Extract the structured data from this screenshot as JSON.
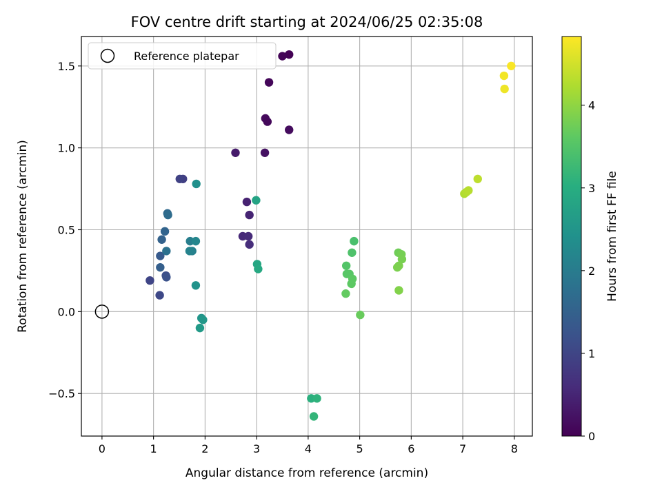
{
  "chart_data": {
    "type": "scatter",
    "title": "FOV centre drift starting at 2024/06/25 02:35:08",
    "xlabel": "Angular distance from reference (arcmin)",
    "ylabel": "Rotation from reference (arcmin)",
    "xlim": [
      -0.4,
      8.35
    ],
    "ylim": [
      -0.76,
      1.68
    ],
    "xticks": [
      0,
      1,
      2,
      3,
      4,
      5,
      6,
      7,
      8
    ],
    "xtick_labels": [
      "0",
      "1",
      "2",
      "3",
      "4",
      "5",
      "6",
      "7",
      "8"
    ],
    "yticks": [
      -0.5,
      0.0,
      0.5,
      1.0,
      1.5
    ],
    "ytick_labels": [
      "−0.5",
      "0.0",
      "0.5",
      "1.0",
      "1.5"
    ],
    "grid": true,
    "legend": {
      "position": "top-left",
      "entries": [
        "Reference platepar"
      ]
    },
    "reference": {
      "x": 0,
      "y": 0,
      "label": "Reference platepar"
    },
    "colorbar": {
      "label": "Hours from first FF file",
      "range": [
        0,
        4.83
      ],
      "ticks": [
        0,
        1,
        2,
        3,
        4
      ],
      "tick_labels": [
        "0",
        "1",
        "2",
        "3",
        "4"
      ],
      "colormap": "viridis"
    },
    "points": [
      {
        "x": 3.63,
        "y": 1.57,
        "c": 0.02
      },
      {
        "x": 3.5,
        "y": 1.56,
        "c": 0.05
      },
      {
        "x": 3.24,
        "y": 1.4,
        "c": 0.08
      },
      {
        "x": 3.17,
        "y": 1.18,
        "c": 0.12
      },
      {
        "x": 3.21,
        "y": 1.16,
        "c": 0.1
      },
      {
        "x": 3.63,
        "y": 1.11,
        "c": 0.15
      },
      {
        "x": 3.16,
        "y": 0.97,
        "c": 0.22
      },
      {
        "x": 2.59,
        "y": 0.97,
        "c": 0.35
      },
      {
        "x": 2.81,
        "y": 0.67,
        "c": 0.45
      },
      {
        "x": 2.86,
        "y": 0.59,
        "c": 0.48
      },
      {
        "x": 2.73,
        "y": 0.46,
        "c": 0.55
      },
      {
        "x": 2.84,
        "y": 0.46,
        "c": 0.58
      },
      {
        "x": 2.86,
        "y": 0.41,
        "c": 0.62
      },
      {
        "x": 1.57,
        "y": 0.81,
        "c": 0.9
      },
      {
        "x": 1.51,
        "y": 0.81,
        "c": 0.95
      },
      {
        "x": 0.93,
        "y": 0.19,
        "c": 1.0
      },
      {
        "x": 1.12,
        "y": 0.1,
        "c": 1.05
      },
      {
        "x": 1.24,
        "y": 0.22,
        "c": 1.15
      },
      {
        "x": 1.25,
        "y": 0.21,
        "c": 1.2
      },
      {
        "x": 1.13,
        "y": 0.34,
        "c": 1.35
      },
      {
        "x": 1.13,
        "y": 0.27,
        "c": 1.45
      },
      {
        "x": 1.16,
        "y": 0.44,
        "c": 1.5
      },
      {
        "x": 1.22,
        "y": 0.49,
        "c": 1.55
      },
      {
        "x": 1.27,
        "y": 0.6,
        "c": 1.65
      },
      {
        "x": 1.28,
        "y": 0.59,
        "c": 1.7
      },
      {
        "x": 1.25,
        "y": 0.37,
        "c": 1.8
      },
      {
        "x": 1.71,
        "y": 0.43,
        "c": 2.05
      },
      {
        "x": 1.75,
        "y": 0.37,
        "c": 2.1
      },
      {
        "x": 1.7,
        "y": 0.37,
        "c": 2.15
      },
      {
        "x": 1.82,
        "y": 0.43,
        "c": 2.2
      },
      {
        "x": 1.83,
        "y": 0.78,
        "c": 2.4
      },
      {
        "x": 1.82,
        "y": 0.16,
        "c": 2.45
      },
      {
        "x": 1.93,
        "y": -0.04,
        "c": 2.5
      },
      {
        "x": 1.96,
        "y": -0.05,
        "c": 2.55
      },
      {
        "x": 1.9,
        "y": -0.1,
        "c": 2.6
      },
      {
        "x": 2.99,
        "y": 0.68,
        "c": 2.8
      },
      {
        "x": 3.01,
        "y": 0.29,
        "c": 2.85
      },
      {
        "x": 3.03,
        "y": 0.26,
        "c": 2.9
      },
      {
        "x": 4.06,
        "y": -0.53,
        "c": 3.05
      },
      {
        "x": 4.17,
        "y": -0.53,
        "c": 3.1
      },
      {
        "x": 4.11,
        "y": -0.64,
        "c": 3.15
      },
      {
        "x": 4.89,
        "y": 0.43,
        "c": 3.4
      },
      {
        "x": 4.85,
        "y": 0.36,
        "c": 3.45
      },
      {
        "x": 4.74,
        "y": 0.28,
        "c": 3.5
      },
      {
        "x": 4.75,
        "y": 0.23,
        "c": 3.55
      },
      {
        "x": 4.8,
        "y": 0.23,
        "c": 3.55
      },
      {
        "x": 4.86,
        "y": 0.2,
        "c": 3.6
      },
      {
        "x": 4.84,
        "y": 0.17,
        "c": 3.6
      },
      {
        "x": 4.73,
        "y": 0.11,
        "c": 3.65
      },
      {
        "x": 5.01,
        "y": -0.02,
        "c": 3.7
      },
      {
        "x": 5.75,
        "y": 0.36,
        "c": 3.75
      },
      {
        "x": 5.81,
        "y": 0.35,
        "c": 3.8
      },
      {
        "x": 5.82,
        "y": 0.32,
        "c": 3.82
      },
      {
        "x": 5.76,
        "y": 0.28,
        "c": 3.85
      },
      {
        "x": 5.73,
        "y": 0.27,
        "c": 3.85
      },
      {
        "x": 5.76,
        "y": 0.13,
        "c": 3.9
      },
      {
        "x": 7.03,
        "y": 0.72,
        "c": 4.25
      },
      {
        "x": 7.07,
        "y": 0.73,
        "c": 4.28
      },
      {
        "x": 7.11,
        "y": 0.74,
        "c": 4.3
      },
      {
        "x": 7.29,
        "y": 0.81,
        "c": 4.35
      },
      {
        "x": 7.94,
        "y": 1.5,
        "c": 4.8
      },
      {
        "x": 7.8,
        "y": 1.44,
        "c": 4.75
      },
      {
        "x": 7.81,
        "y": 1.36,
        "c": 4.72
      }
    ]
  }
}
